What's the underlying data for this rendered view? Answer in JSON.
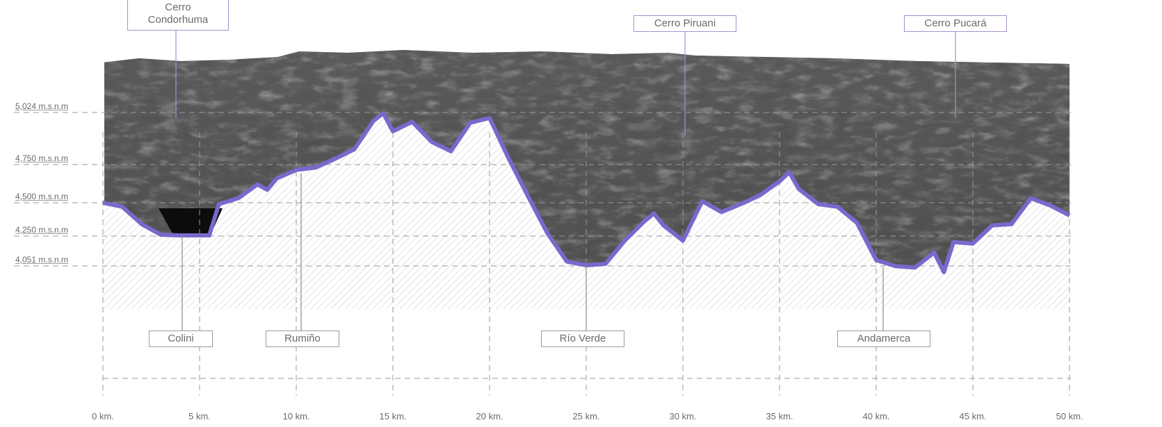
{
  "elevation_labels": [
    {
      "label": "5,024 m.s.n.m",
      "value": 5024
    },
    {
      "label": "4,750 m.s.n.m",
      "value": 4750
    },
    {
      "label": "4,500 m.s.n.m",
      "value": 4500
    },
    {
      "label": "4,250 m.s.n.m",
      "value": 4250
    },
    {
      "label": "4,051 m.s.n.m",
      "value": 4051
    }
  ],
  "distance_ticks": [
    "0 km.",
    "5 km.",
    "10 km.",
    "15 km.",
    "20 km.",
    "25 km.",
    "30 km.",
    "35 km.",
    "40 km.",
    "45 km.",
    "50 km."
  ],
  "peaks": [
    {
      "name": "Cerro\nCondorhuma",
      "km": 4
    },
    {
      "name": "Cerro Piruani",
      "km": 30
    },
    {
      "name": "Cerro Pucará",
      "km": 44
    }
  ],
  "places": [
    {
      "name": "Colini",
      "km": 4
    },
    {
      "name": "Rumiño",
      "km": 10
    },
    {
      "name": "Río Verde",
      "km": 25
    },
    {
      "name": "Andamerca",
      "km": 40.5
    }
  ],
  "colors": {
    "profile_line": "#7a68cc",
    "terrain_dark": "#3a3a3a",
    "terrain_light": "#8a8a8a",
    "hatch": "#cfcfcf",
    "guide_line": "#9a9a9a"
  },
  "chart_data": {
    "type": "area",
    "xlabel": "",
    "ylabel": "",
    "x_unit": "km",
    "xlim": [
      0,
      50
    ],
    "x": [
      0,
      1,
      2,
      3,
      4,
      5,
      5.5,
      6,
      7,
      8,
      8.5,
      9,
      10,
      11,
      12,
      13,
      14,
      14.5,
      15,
      16,
      17,
      18,
      19,
      20,
      21,
      22,
      23,
      24,
      25,
      26,
      27,
      28,
      28.5,
      29,
      30,
      31,
      32,
      33,
      34,
      35,
      35.5,
      36,
      37,
      38,
      39,
      40,
      41,
      42,
      43,
      43.5,
      44,
      45,
      46,
      47,
      48,
      49,
      50
    ],
    "y": [
      4500,
      4470,
      4340,
      4260,
      4255,
      4255,
      4255,
      4490,
      4530,
      4620,
      4585,
      4660,
      4715,
      4730,
      4780,
      4830,
      4980,
      5020,
      4925,
      4975,
      4870,
      4820,
      4970,
      4995,
      4780,
      4540,
      4270,
      4080,
      4055,
      4065,
      4220,
      4360,
      4420,
      4330,
      4220,
      4510,
      4430,
      4490,
      4550,
      4640,
      4700,
      4590,
      4490,
      4470,
      4350,
      4090,
      4050,
      4040,
      4140,
      4010,
      4210,
      4200,
      4330,
      4340,
      4530,
      4480,
      4405
    ]
  }
}
